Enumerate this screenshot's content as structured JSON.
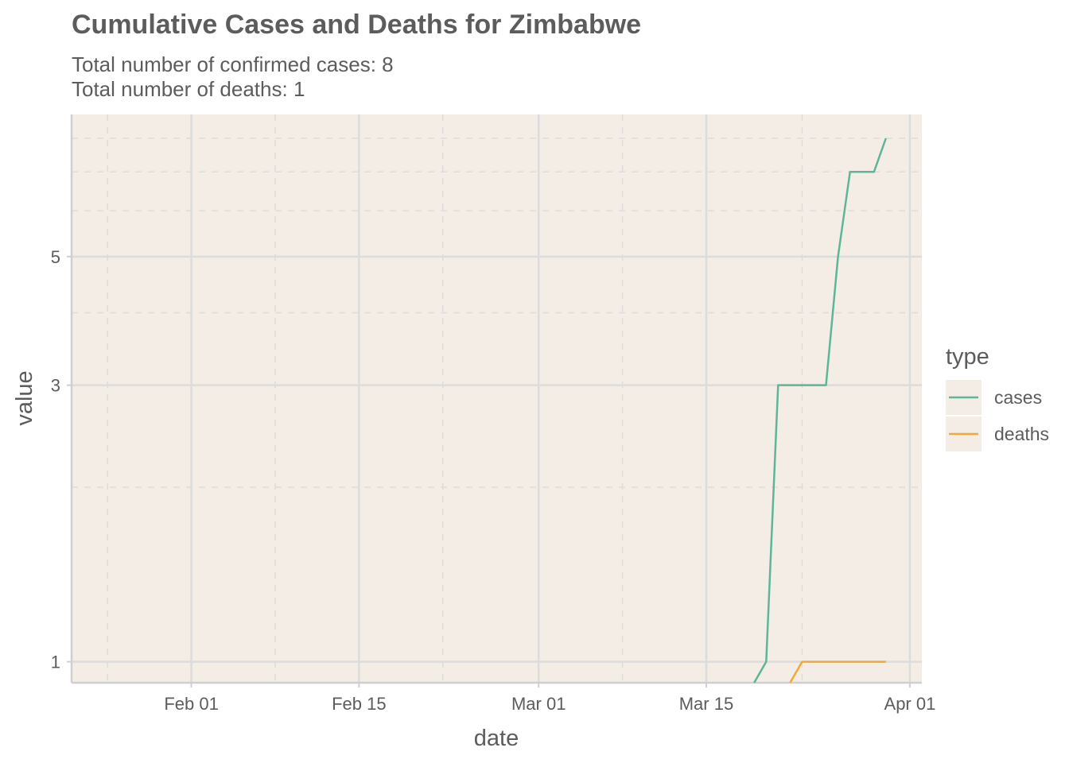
{
  "chart_data": {
    "type": "line",
    "title": "Cumulative Cases and Deaths for Zimbabwe",
    "subtitle_lines": [
      "Total number of confirmed cases: 8",
      "Total number of deaths: 1"
    ],
    "xlabel": "date",
    "ylabel": "value",
    "y_scale": "log",
    "xlim": [
      "2020-01-22",
      "2020-04-02"
    ],
    "ylim": [
      0.92,
      8.0
    ],
    "x_ticks": [
      {
        "date": "2020-02-01",
        "label": "Feb 01"
      },
      {
        "date": "2020-02-15",
        "label": "Feb 15"
      },
      {
        "date": "2020-03-01",
        "label": "Mar 01"
      },
      {
        "date": "2020-03-15",
        "label": "Mar 15"
      },
      {
        "date": "2020-04-01",
        "label": "Apr 01"
      }
    ],
    "x_minor_ticks": [
      "2020-01-25",
      "2020-02-08",
      "2020-02-22",
      "2020-03-08",
      "2020-03-23"
    ],
    "y_ticks": [
      1,
      3,
      5
    ],
    "y_minor_ticks": [
      2,
      4,
      6,
      7,
      8
    ],
    "grid": true,
    "background_color": "#f3ede6",
    "legend": {
      "title": "type",
      "position": "right"
    },
    "series": [
      {
        "name": "cases",
        "color": "#5fb597",
        "points": [
          {
            "x": "2020-03-19",
            "y": 0.92
          },
          {
            "x": "2020-03-20",
            "y": 1
          },
          {
            "x": "2020-03-21",
            "y": 3
          },
          {
            "x": "2020-03-22",
            "y": 3
          },
          {
            "x": "2020-03-23",
            "y": 3
          },
          {
            "x": "2020-03-24",
            "y": 3
          },
          {
            "x": "2020-03-25",
            "y": 3
          },
          {
            "x": "2020-03-26",
            "y": 5
          },
          {
            "x": "2020-03-27",
            "y": 7
          },
          {
            "x": "2020-03-28",
            "y": 7
          },
          {
            "x": "2020-03-29",
            "y": 7
          },
          {
            "x": "2020-03-30",
            "y": 8
          }
        ]
      },
      {
        "name": "deaths",
        "color": "#f5a83a",
        "points": [
          {
            "x": "2020-03-22",
            "y": 0.92
          },
          {
            "x": "2020-03-23",
            "y": 1
          },
          {
            "x": "2020-03-24",
            "y": 1
          },
          {
            "x": "2020-03-25",
            "y": 1
          },
          {
            "x": "2020-03-26",
            "y": 1
          },
          {
            "x": "2020-03-27",
            "y": 1
          },
          {
            "x": "2020-03-28",
            "y": 1
          },
          {
            "x": "2020-03-29",
            "y": 1
          },
          {
            "x": "2020-03-30",
            "y": 1
          }
        ]
      }
    ]
  }
}
